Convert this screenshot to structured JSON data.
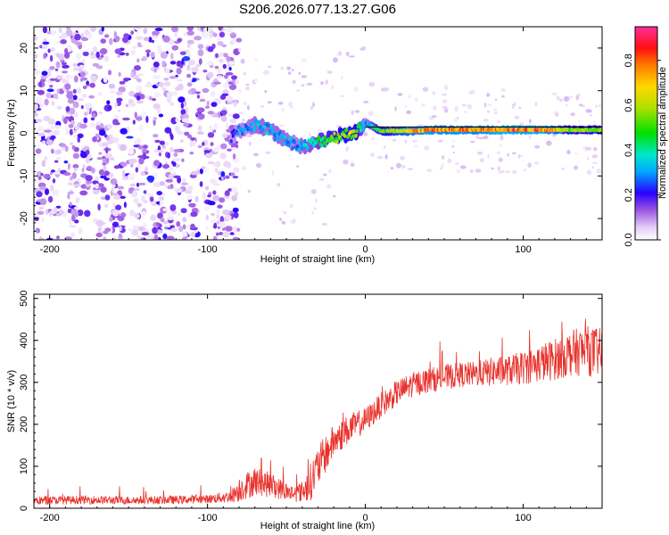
{
  "figure_title": "S206.2026.077.13.27.G06",
  "colors": {
    "snr_line": "#e8312b",
    "ridge_line": "#000000"
  },
  "chart_data": [
    {
      "type": "heatmap",
      "title": "S206.2026.077.13.27.G06",
      "xlabel": "Height of straight line (km)",
      "ylabel": "Frequency (Hz)",
      "xlim": [
        -210,
        150
      ],
      "ylim": [
        -25,
        25
      ],
      "xticks": [
        -200,
        -100,
        0,
        100
      ],
      "xtick_labels": [
        "-200",
        "-100",
        "0",
        "100"
      ],
      "yticks": [
        -20,
        -10,
        0,
        10,
        20
      ],
      "ytick_labels": [
        "-20",
        "-10",
        "0",
        "10",
        "20"
      ],
      "colorbar": {
        "label": "Normalized spectral amplitude",
        "range": [
          0,
          0.95
        ],
        "ticks": [
          0.0,
          0.2,
          0.4,
          0.6,
          0.8
        ],
        "tick_labels": [
          "0.0",
          "0.2",
          "0.4",
          "0.6",
          "0.8"
        ]
      },
      "ridge_line": {
        "x": [
          0,
          150
        ],
        "y": [
          1.5,
          1.5
        ]
      },
      "ridge": {
        "x": [
          -85,
          -80,
          -75,
          -70,
          -65,
          -60,
          -55,
          -50,
          -45,
          -40,
          -35,
          -30,
          -25,
          -20,
          -15,
          -10,
          -5,
          0,
          5,
          10,
          20,
          30,
          40,
          50,
          60,
          70,
          80,
          90,
          100,
          110,
          120,
          130,
          140,
          150
        ],
        "y": [
          -1,
          0.5,
          1.5,
          2,
          1.5,
          0.5,
          -0.5,
          -1.5,
          -2.5,
          -3,
          -2.5,
          -2,
          -1.5,
          -1,
          -0.5,
          0,
          0.5,
          2.5,
          1.5,
          0.5,
          0.5,
          0.5,
          0.8,
          0.8,
          0.8,
          0.8,
          0.8,
          0.8,
          0.8,
          0.8,
          0.8,
          0.8,
          0.8,
          0.8
        ],
        "amplitude": [
          0.25,
          0.3,
          0.3,
          0.35,
          0.35,
          0.35,
          0.35,
          0.35,
          0.3,
          0.35,
          0.4,
          0.45,
          0.5,
          0.55,
          0.6,
          0.65,
          0.6,
          0.3,
          0.45,
          0.55,
          0.7,
          0.8,
          0.85,
          0.8,
          0.85,
          0.8,
          0.85,
          0.9,
          0.85,
          0.9,
          0.8,
          0.6,
          0.6,
          0.6
        ]
      },
      "noise": {
        "x_range": [
          -210,
          -80
        ],
        "amplitude_range": [
          0.0,
          0.25
        ]
      }
    },
    {
      "type": "line",
      "xlabel": "Height of straight line (km)",
      "ylabel": "SNR (10 * v/v)",
      "xlim": [
        -210,
        150
      ],
      "ylim": [
        0,
        510
      ],
      "xticks": [
        -200,
        -100,
        0,
        100
      ],
      "xtick_labels": [
        "-200",
        "-100",
        "0",
        "100"
      ],
      "yticks": [
        0,
        100,
        200,
        300,
        400,
        500
      ],
      "ytick_labels": [
        "0",
        "100",
        "200",
        "300",
        "400",
        "500"
      ],
      "series": [
        {
          "name": "SNR",
          "x": [
            -210,
            -180,
            -150,
            -120,
            -100,
            -85,
            -80,
            -70,
            -60,
            -50,
            -45,
            -40,
            -35,
            -30,
            -20,
            -10,
            0,
            10,
            20,
            30,
            40,
            50,
            60,
            70,
            80,
            90,
            100,
            110,
            120,
            130,
            140,
            150
          ],
          "y": [
            18,
            20,
            19,
            20,
            22,
            28,
            45,
            65,
            55,
            40,
            35,
            40,
            60,
            100,
            160,
            190,
            210,
            245,
            275,
            295,
            305,
            312,
            318,
            320,
            325,
            328,
            335,
            345,
            355,
            370,
            375,
            370
          ],
          "noise": [
            10,
            10,
            10,
            10,
            10,
            15,
            30,
            35,
            30,
            22,
            20,
            25,
            45,
            50,
            40,
            35,
            30,
            30,
            30,
            30,
            30,
            30,
            30,
            30,
            35,
            35,
            40,
            45,
            50,
            55,
            60,
            60
          ]
        }
      ]
    }
  ]
}
